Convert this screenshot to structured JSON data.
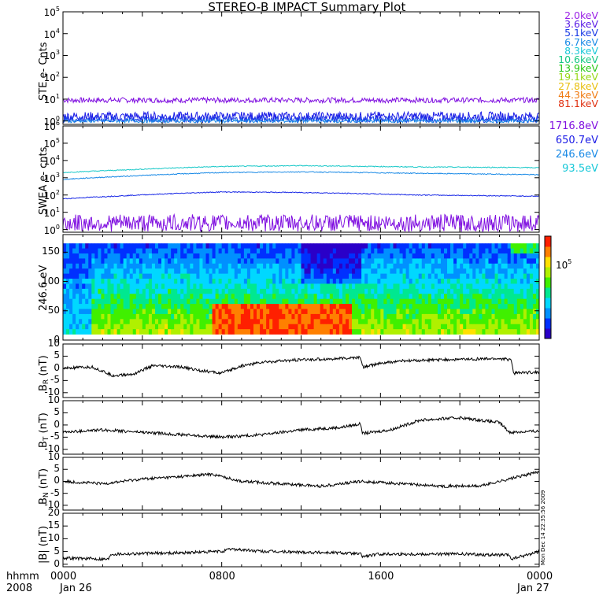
{
  "chart_data": {
    "title": "STEREO-B IMPACT Summary Plot",
    "x_axis": {
      "row1_label": "hhmm",
      "row2_label": "2008",
      "ticks": [
        "0000",
        "0800",
        "1600",
        "0000"
      ],
      "dates": [
        "Jan 26",
        "Jan 27"
      ],
      "range_hours": [
        0,
        24
      ]
    },
    "panels": [
      {
        "id": "ste",
        "type": "line",
        "ylabel": "STE e- Cnts",
        "yscale": "log",
        "ylim": [
          0.7,
          100000
        ],
        "ytick_exponents": [
          0,
          1,
          2,
          3,
          4,
          5
        ],
        "legend": [
          "2.0keV",
          "3.6keV",
          "5.1keV",
          "6.7keV",
          "8.3keV",
          "10.6keV",
          "13.9keV",
          "19.1keV",
          "27.8keV",
          "44.3keV",
          "81.1keV"
        ],
        "legend_colors": [
          "#9a20e6",
          "#5a1ce6",
          "#1a3be6",
          "#1a8ae6",
          "#18c8d8",
          "#14c884",
          "#28c814",
          "#98d814",
          "#e8c010",
          "#f07a10",
          "#e03010"
        ],
        "series": [
          {
            "name": "2.0keV",
            "color": "#8010e0",
            "level": 9,
            "noise": 0.12
          },
          {
            "name": "3.6keV",
            "color": "#1a1ae6",
            "level": 1.6,
            "noise": 0.22
          },
          {
            "name": "5.1keV",
            "color": "#1a3be6",
            "level": 1.2,
            "noise": 0.15
          },
          {
            "name": "6.7keV",
            "color": "#1a8ae6",
            "level": 1.0,
            "noise": 0.08
          }
        ]
      },
      {
        "id": "swea",
        "type": "line",
        "ylabel": "SWEA e- cnts",
        "yscale": "log",
        "ylim": [
          0.7,
          1000000
        ],
        "ytick_exponents": [
          0,
          1,
          2,
          3,
          4,
          5,
          6
        ],
        "legend": [
          "1716.8eV",
          "650.7eV",
          "246.6eV",
          "93.5eV"
        ],
        "legend_colors": [
          "#8010e0",
          "#1a1ae6",
          "#1a8ae6",
          "#18c8d8"
        ],
        "series": [
          {
            "name": "93.5eV",
            "color": "#18c8c8",
            "profile": [
              [
                0,
                2000
              ],
              [
                3,
                2800
              ],
              [
                8,
                4500
              ],
              [
                12,
                5000
              ],
              [
                18,
                4200
              ],
              [
                22,
                4000
              ],
              [
                24,
                3800
              ]
            ]
          },
          {
            "name": "246.6eV",
            "color": "#1a8ae6",
            "profile": [
              [
                0,
                800
              ],
              [
                3,
                1200
              ],
              [
                8,
                2000
              ],
              [
                12,
                2200
              ],
              [
                18,
                1800
              ],
              [
                22,
                1600
              ],
              [
                24,
                1500
              ]
            ]
          },
          {
            "name": "650.7eV",
            "color": "#1a2ae6",
            "profile": [
              [
                0,
                60
              ],
              [
                3,
                90
              ],
              [
                8,
                150
              ],
              [
                12,
                140
              ],
              [
                18,
                100
              ],
              [
                22,
                90
              ],
              [
                24,
                85
              ]
            ]
          },
          {
            "name": "1716.8eV",
            "color": "#8010e0",
            "profile": [
              [
                0,
                3
              ],
              [
                24,
                3
              ]
            ],
            "noisy": true
          }
        ]
      },
      {
        "id": "pad",
        "type": "heatmap",
        "ylabel": "246.6 eV",
        "ylim": [
          0,
          180
        ],
        "yticks": [
          0,
          50,
          100,
          150
        ],
        "colorbar_label": "10",
        "colorbar_exponent": "5",
        "colorbar_colors": [
          "#2a00c8",
          "#0030ff",
          "#0090ff",
          "#00d8ff",
          "#00e890",
          "#40f000",
          "#b0f000",
          "#ffe000",
          "#ff8000",
          "#ff2000"
        ]
      },
      {
        "id": "br",
        "type": "line",
        "ylabel_main": "B",
        "ylabel_sub": "R",
        "ylabel_unit": " (nT)",
        "ylim": [
          -12,
          10
        ],
        "yticks": [
          -10,
          -5,
          0,
          5,
          10
        ],
        "profile": [
          [
            0,
            0
          ],
          [
            1.5,
            0.5
          ],
          [
            2.5,
            -3
          ],
          [
            3.5,
            -2.5
          ],
          [
            4.5,
            1
          ],
          [
            6,
            0.5
          ],
          [
            7,
            -1
          ],
          [
            8,
            -2
          ],
          [
            9,
            1
          ],
          [
            10,
            2.5
          ],
          [
            12,
            3.5
          ],
          [
            14,
            4
          ],
          [
            15,
            4.5
          ],
          [
            15.1,
            0.5
          ],
          [
            16,
            2
          ],
          [
            17,
            3
          ],
          [
            19,
            3.5
          ],
          [
            22,
            4
          ],
          [
            22.6,
            3.5
          ],
          [
            22.7,
            -2
          ],
          [
            24,
            -1.5
          ]
        ]
      },
      {
        "id": "bt",
        "type": "line",
        "ylabel_main": "B",
        "ylabel_sub": "T",
        "ylabel_unit": " (nT)",
        "ylim": [
          -12,
          10
        ],
        "yticks": [
          -10,
          -5,
          0,
          5,
          10
        ],
        "profile": [
          [
            0,
            -3
          ],
          [
            2,
            -2
          ],
          [
            4,
            -3
          ],
          [
            6,
            -4
          ],
          [
            8,
            -5
          ],
          [
            10,
            -4
          ],
          [
            12,
            -2
          ],
          [
            14,
            -1
          ],
          [
            15,
            0.5
          ],
          [
            15.1,
            -3.5
          ],
          [
            16.5,
            -2
          ],
          [
            18,
            2
          ],
          [
            20,
            3
          ],
          [
            22,
            1
          ],
          [
            22.5,
            -3
          ],
          [
            24,
            -2.5
          ]
        ]
      },
      {
        "id": "bn",
        "type": "line",
        "ylabel_main": "B",
        "ylabel_sub": "N",
        "ylabel_unit": " (nT)",
        "ylim": [
          -12,
          10
        ],
        "yticks": [
          -10,
          -5,
          0,
          5,
          10
        ],
        "profile": [
          [
            0,
            0
          ],
          [
            2,
            -1
          ],
          [
            4,
            1
          ],
          [
            6,
            2
          ],
          [
            7.5,
            3
          ],
          [
            9,
            0
          ],
          [
            11,
            -1
          ],
          [
            13,
            -2
          ],
          [
            15,
            0
          ],
          [
            17,
            -1
          ],
          [
            19,
            -2
          ],
          [
            21,
            -2
          ],
          [
            23,
            2
          ],
          [
            24,
            4
          ]
        ]
      },
      {
        "id": "bmag",
        "type": "line",
        "ylabel": "|B| (nT)",
        "ylim": [
          -1,
          20
        ],
        "yticks": [
          0,
          5,
          10,
          15,
          20
        ],
        "profile": [
          [
            0,
            2.5
          ],
          [
            2.3,
            2
          ],
          [
            2.4,
            4
          ],
          [
            6,
            4.5
          ],
          [
            8,
            5
          ],
          [
            8.5,
            6
          ],
          [
            10,
            5
          ],
          [
            14,
            4.5
          ],
          [
            15,
            4
          ],
          [
            15.1,
            3
          ],
          [
            16,
            4
          ],
          [
            20,
            4
          ],
          [
            22.5,
            3.5
          ],
          [
            22.6,
            2
          ],
          [
            24,
            5
          ]
        ]
      }
    ],
    "timestamp": "Mon Dec 14 22:35:56 2009"
  }
}
